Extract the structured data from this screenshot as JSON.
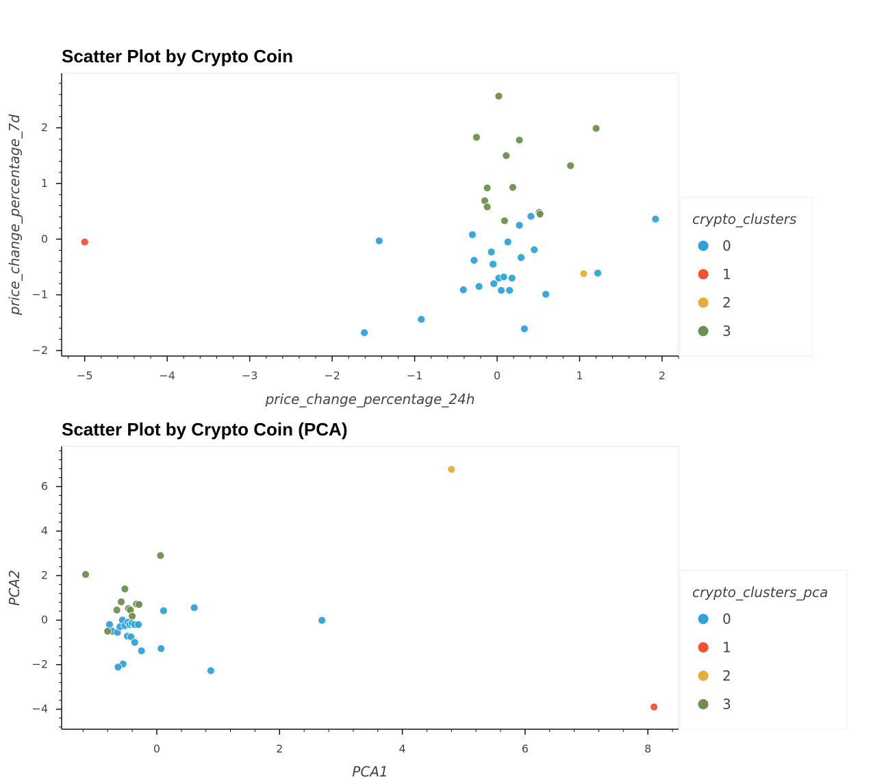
{
  "chart_data": [
    {
      "type": "scatter",
      "title": "Scatter Plot by Crypto Coin",
      "xlabel": "price_change_percentage_24h",
      "ylabel": "price_change_percentage_7d",
      "xlim": [
        -5.28,
        2.2
      ],
      "ylim": [
        -2.1,
        2.98
      ],
      "xticks": [
        -5,
        -4,
        -3,
        -2,
        -1,
        0,
        1,
        2
      ],
      "yticks": [
        -2,
        -1,
        0,
        1,
        2
      ],
      "x_minor_step": 0.2,
      "y_minor_step": 0.2,
      "grid": false,
      "legend": {
        "title": "crypto_clusters",
        "placement": "right",
        "entries": [
          "0",
          "1",
          "2",
          "3"
        ]
      },
      "colors": [
        "#30a2da",
        "#fc4f30",
        "#e5ae38",
        "#6d904f"
      ],
      "series": [
        {
          "name": "0",
          "points": [
            [
              -1.43,
              -0.03
            ],
            [
              -1.61,
              -1.68
            ],
            [
              -0.92,
              -1.44
            ],
            [
              -0.41,
              -0.91
            ],
            [
              -0.22,
              -0.85
            ],
            [
              -0.3,
              0.08
            ],
            [
              -0.28,
              -0.38
            ],
            [
              -0.07,
              -0.23
            ],
            [
              -0.05,
              -0.45
            ],
            [
              -0.04,
              -0.8
            ],
            [
              0.02,
              -0.7
            ],
            [
              0.05,
              -0.92
            ],
            [
              0.08,
              -0.68
            ],
            [
              0.13,
              -0.05
            ],
            [
              0.15,
              -0.92
            ],
            [
              0.18,
              -0.7
            ],
            [
              0.27,
              0.25
            ],
            [
              0.29,
              -0.33
            ],
            [
              0.33,
              -1.61
            ],
            [
              0.41,
              0.41
            ],
            [
              0.45,
              -0.19
            ],
            [
              0.59,
              -0.99
            ],
            [
              1.22,
              -0.61
            ],
            [
              1.92,
              0.36
            ]
          ]
        },
        {
          "name": "1",
          "points": [
            [
              -5.0,
              -0.05
            ]
          ]
        },
        {
          "name": "2",
          "points": [
            [
              1.05,
              -0.62
            ]
          ]
        },
        {
          "name": "3",
          "points": [
            [
              0.02,
              2.57
            ],
            [
              -0.25,
              1.83
            ],
            [
              0.27,
              1.78
            ],
            [
              1.2,
              1.99
            ],
            [
              0.11,
              1.5
            ],
            [
              0.89,
              1.32
            ],
            [
              -0.12,
              0.92
            ],
            [
              0.19,
              0.93
            ],
            [
              -0.15,
              0.69
            ],
            [
              -0.12,
              0.58
            ],
            [
              0.09,
              0.33
            ],
            [
              0.51,
              0.48
            ],
            [
              0.52,
              0.45
            ]
          ]
        }
      ]
    },
    {
      "type": "scatter",
      "title": "Scatter Plot by Crypto Coin (PCA)",
      "xlabel": "PCA1",
      "ylabel": "PCA2",
      "xlim": [
        -1.55,
        8.5
      ],
      "ylim": [
        -4.9,
        7.8
      ],
      "xticks": [
        0,
        2,
        4,
        6,
        8
      ],
      "yticks": [
        -4,
        -2,
        0,
        2,
        4,
        6
      ],
      "x_minor_step": 0.4,
      "y_minor_step": 0.4,
      "grid": false,
      "legend": {
        "title": "crypto_clusters_pca",
        "placement": "right",
        "entries": [
          "0",
          "1",
          "2",
          "3"
        ]
      },
      "colors": [
        "#30a2da",
        "#fc4f30",
        "#e5ae38",
        "#6d904f"
      ],
      "series": [
        {
          "name": "0",
          "points": [
            [
              -0.77,
              -0.2
            ],
            [
              -0.72,
              -0.5
            ],
            [
              -0.64,
              -0.55
            ],
            [
              -0.6,
              -0.3
            ],
            [
              -0.56,
              0.0
            ],
            [
              -0.52,
              -0.25
            ],
            [
              -0.47,
              -0.1
            ],
            [
              -0.44,
              -0.2
            ],
            [
              -0.4,
              -0.15
            ],
            [
              -0.36,
              -0.2
            ],
            [
              -0.3,
              -0.2
            ],
            [
              -0.48,
              -0.72
            ],
            [
              -0.42,
              -0.75
            ],
            [
              -0.36,
              -1.0
            ],
            [
              -0.25,
              -1.38
            ],
            [
              -0.55,
              -1.97
            ],
            [
              -0.63,
              -2.11
            ],
            [
              0.07,
              -1.28
            ],
            [
              0.11,
              0.42
            ],
            [
              0.61,
              0.56
            ],
            [
              0.88,
              -2.27
            ],
            [
              2.69,
              -0.01
            ]
          ]
        },
        {
          "name": "1",
          "points": [
            [
              8.1,
              -3.9
            ]
          ]
        },
        {
          "name": "2",
          "points": [
            [
              4.8,
              6.77
            ]
          ]
        },
        {
          "name": "3",
          "points": [
            [
              -1.16,
              2.05
            ],
            [
              0.06,
              2.9
            ],
            [
              -0.52,
              1.4
            ],
            [
              -0.58,
              0.82
            ],
            [
              -0.65,
              0.45
            ],
            [
              -0.46,
              0.52
            ],
            [
              -0.43,
              0.45
            ],
            [
              -0.33,
              0.72
            ],
            [
              -0.29,
              0.7
            ],
            [
              -0.4,
              0.18
            ],
            [
              -0.8,
              -0.5
            ]
          ]
        }
      ]
    }
  ]
}
